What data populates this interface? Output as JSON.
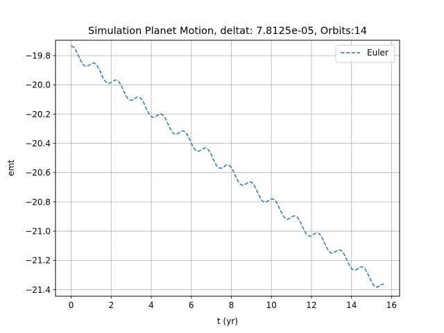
{
  "chart_data": {
    "type": "line",
    "title": "Simulation Planet Motion, deltat: 7.8125e-05, Orbits:14",
    "xlabel": "t (yr)",
    "ylabel": "emt",
    "xlim": [
      -0.78,
      16.4
    ],
    "ylim": [
      -21.445,
      -19.695
    ],
    "xticks": [
      0,
      2,
      4,
      6,
      8,
      10,
      12,
      14,
      16
    ],
    "yticks": [
      -19.8,
      -20.0,
      -20.2,
      -20.4,
      -20.6,
      -20.8,
      -21.0,
      -21.2,
      -21.4
    ],
    "xtick_labels": [
      "0",
      "2",
      "4",
      "6",
      "8",
      "10",
      "12",
      "14",
      "16"
    ],
    "ytick_labels": [
      "−19.8",
      "−20.0",
      "−20.2",
      "−20.4",
      "−20.6",
      "−20.8",
      "−21.0",
      "−21.2",
      "−21.4"
    ],
    "grid": true,
    "legend_position": "top-right",
    "series": [
      {
        "name": "Euler",
        "color": "#1f77b4",
        "linestyle": "dashed",
        "x_range": [
          0,
          15.62
        ],
        "y_start": -19.735,
        "y_end": -21.36,
        "orbit_period_yr": 1.116,
        "oscillation_amplitude": 0.035,
        "oscillation_phase": -0.55
      }
    ]
  },
  "colors": {
    "axes_edge": "#000000",
    "grid": "#b0b0b0",
    "legend_border": "#cccccc"
  }
}
